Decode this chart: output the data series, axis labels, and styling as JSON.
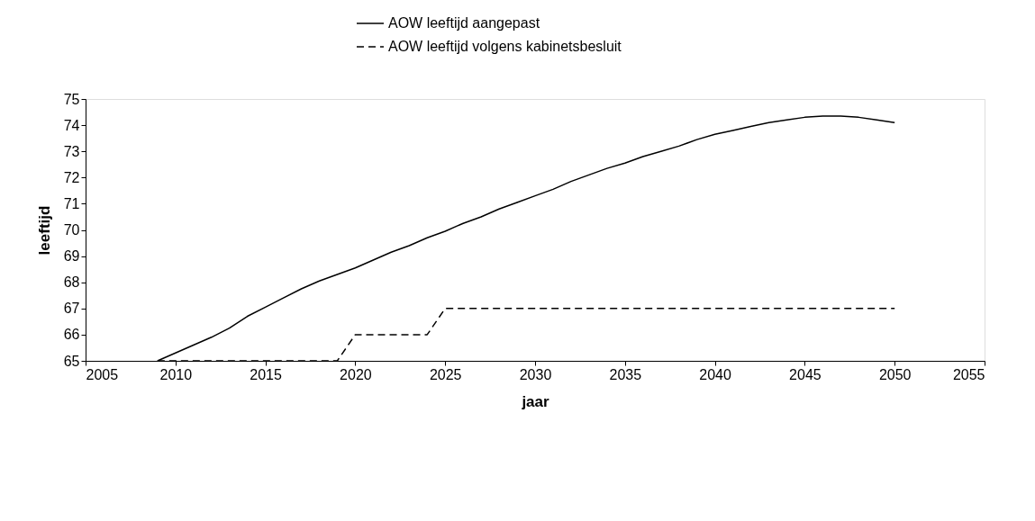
{
  "chart_data": {
    "type": "line",
    "xlabel": "jaar",
    "ylabel": "leeftijd",
    "xlim": [
      2005,
      2055
    ],
    "xticks": [
      2005,
      2010,
      2015,
      2020,
      2025,
      2030,
      2035,
      2040,
      2045,
      2050,
      2055
    ],
    "ylim": [
      65,
      75
    ],
    "yticks": [
      65,
      66,
      67,
      68,
      69,
      70,
      71,
      72,
      73,
      74,
      75
    ],
    "grid": false,
    "legend": "top",
    "marker": "none",
    "series": [
      {
        "name": "AOW leeftijd aangepast",
        "color": "#000000",
        "line_style": "solid",
        "x": [
          2009,
          2010,
          2011,
          2012,
          2013,
          2014,
          2015,
          2016,
          2017,
          2018,
          2019,
          2020,
          2021,
          2022,
          2023,
          2024,
          2025,
          2026,
          2027,
          2028,
          2029,
          2030,
          2031,
          2032,
          2033,
          2034,
          2035,
          2036,
          2037,
          2038,
          2039,
          2040,
          2041,
          2042,
          2043,
          2044,
          2045,
          2046,
          2047,
          2048,
          2049,
          2050
        ],
        "values": [
          65,
          65.3,
          65.6,
          65.9,
          66.25,
          66.7,
          67.05,
          67.4,
          67.75,
          68.05,
          68.3,
          68.55,
          68.85,
          69.15,
          69.4,
          69.7,
          69.95,
          70.25,
          70.5,
          70.8,
          71.05,
          71.3,
          71.55,
          71.85,
          72.1,
          72.35,
          72.55,
          72.8,
          73.0,
          73.2,
          73.45,
          73.65,
          73.8,
          73.95,
          74.1,
          74.2,
          74.3,
          74.35,
          74.35,
          74.3,
          74.2,
          74.1
        ]
      },
      {
        "name": "AOW leeftijd volgens kabinetsbesluit",
        "color": "#000000",
        "line_style": "dashed",
        "x": [
          2009,
          2019,
          2020,
          2024,
          2025,
          2050
        ],
        "values": [
          65,
          65,
          66,
          66,
          67,
          67
        ]
      }
    ]
  }
}
